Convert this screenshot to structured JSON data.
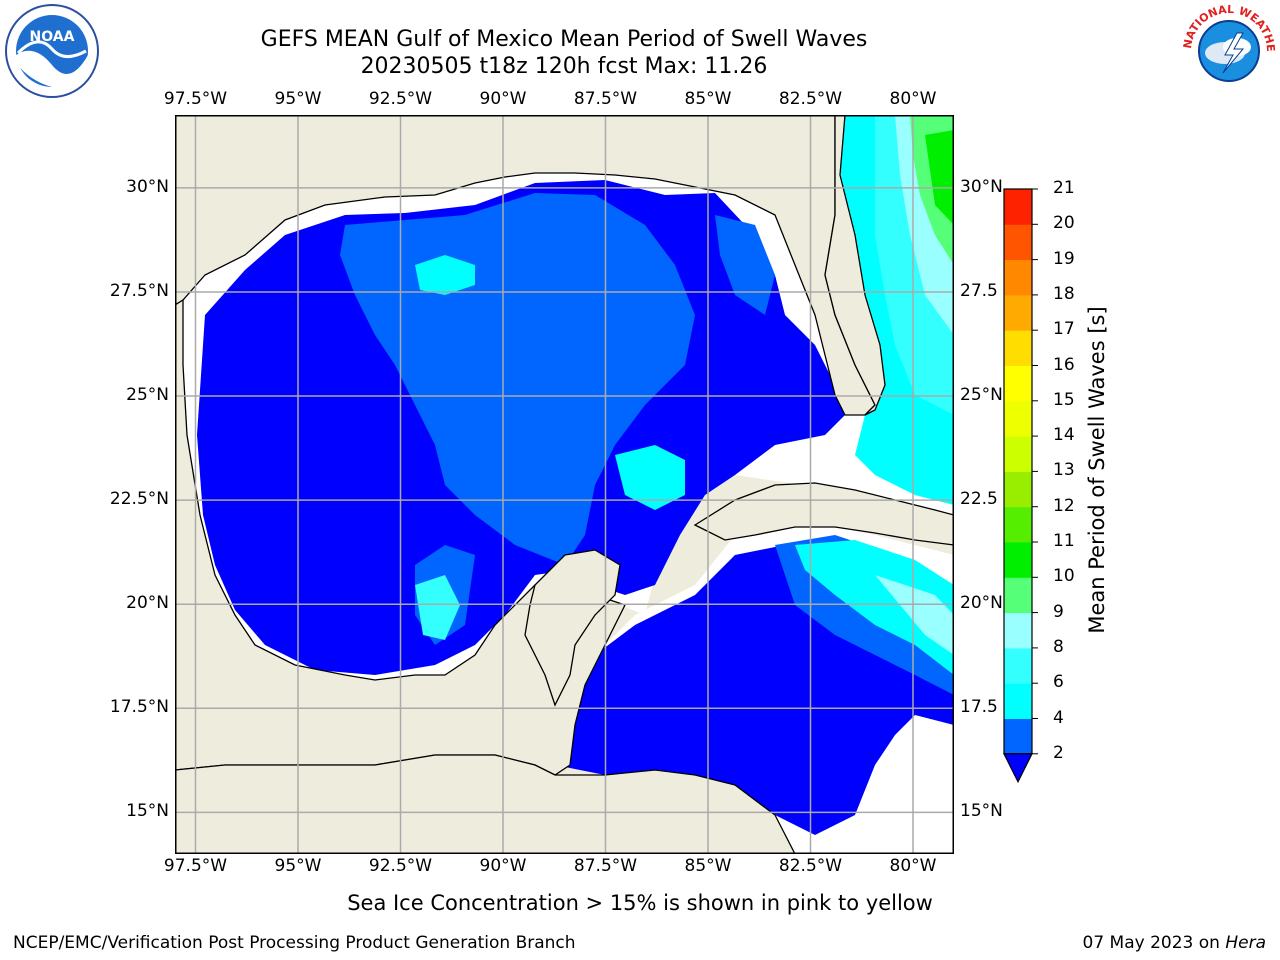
{
  "title": {
    "line1": "GEFS MEAN Gulf of Mexico Mean Period of Swell Waves",
    "line2": "20230505 t18z 120h fcst   Max: 11.26"
  },
  "map": {
    "lon_labels": [
      "97.5°W",
      "95°W",
      "92.5°W",
      "90°W",
      "87.5°W",
      "85°W",
      "82.5°W",
      "80°W"
    ],
    "lat_labels_left": [
      "30°N",
      "27.5°N",
      "25°N",
      "22.5°N",
      "20°N",
      "17.5°N",
      "15°N"
    ],
    "lat_labels_right": [
      "30°N",
      "27.5",
      "25°N",
      "22.5",
      "20°N",
      "17.5",
      "15°N"
    ],
    "lon_range": [
      -98,
      -79
    ],
    "lat_range": [
      14,
      31.75
    ],
    "grid_step_deg": 2.5,
    "colors": {
      "land": "#eeecdd",
      "no_data": "#ffffff",
      "coast": "#000000",
      "grid": "#aaaaaa"
    }
  },
  "colorbar": {
    "title": "Mean Period of Swell Waves [s]",
    "ticks": [
      "2",
      "4",
      "6",
      "8",
      "9",
      "10",
      "11",
      "12",
      "13",
      "14",
      "15",
      "16",
      "17",
      "18",
      "19",
      "20",
      "21"
    ],
    "colors": [
      "#0066ff",
      "#00ffff",
      "#33ffff",
      "#99ffff",
      "#55ff77",
      "#00ee00",
      "#55ee00",
      "#99ee00",
      "#ccff00",
      "#eeff00",
      "#ffff00",
      "#ffdd00",
      "#ffaa00",
      "#ff8800",
      "#ff5500",
      "#ff2200"
    ],
    "under_color": "#0000ff"
  },
  "footer": {
    "ice_note": "Sea Ice Concentration > 15% is shown in pink to yellow",
    "credit": "NCEP/EMC/Verification Post Processing Product Generation Branch",
    "date": "07 May 2023 on",
    "host": "Hera"
  },
  "logos": {
    "left": {
      "name": "noaa-logo",
      "text": "NOAA"
    },
    "right": {
      "name": "nws-logo",
      "text": "NATIONAL WEATHER SERVICE"
    }
  }
}
